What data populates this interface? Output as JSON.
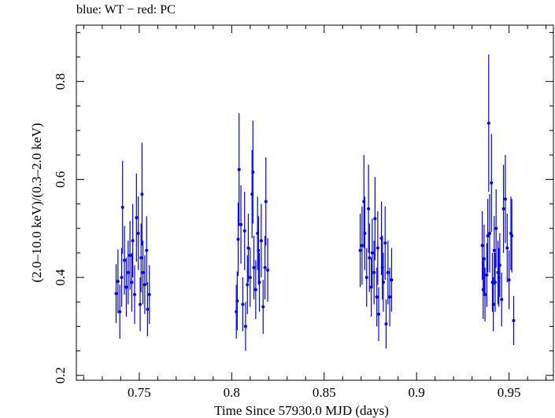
{
  "title": "blue: WT − red: PC",
  "chart_data": {
    "type": "scatter",
    "title": "blue: WT − red: PC",
    "xlabel": "Time Since 57930.0 MJD (days)",
    "ylabel": "(2.0–10.0 keV)/(0.3–2.0 keV)",
    "xlim": [
      0.716,
      0.974
    ],
    "ylim": [
      0.19,
      0.915
    ],
    "x_ticks": [
      0.75,
      0.8,
      0.85,
      0.9,
      0.95
    ],
    "x_tick_labels": [
      "0.75",
      "0.8",
      "0.85",
      "0.9",
      "0.95"
    ],
    "y_ticks": [
      0.2,
      0.4,
      0.6,
      0.8
    ],
    "y_tick_labels": [
      "0.2",
      "0.4",
      "0.6",
      "0.8"
    ],
    "grid": false,
    "series": [
      {
        "name": "WT",
        "color": "#0000ff",
        "points": [
          [
            0.7375,
            0.367,
            0.06
          ],
          [
            0.7385,
            0.392,
            0.065
          ],
          [
            0.7395,
            0.33,
            0.055
          ],
          [
            0.7405,
            0.4,
            0.06
          ],
          [
            0.741,
            0.543,
            0.095
          ],
          [
            0.742,
            0.435,
            0.07
          ],
          [
            0.743,
            0.38,
            0.06
          ],
          [
            0.744,
            0.41,
            0.065
          ],
          [
            0.745,
            0.445,
            0.07
          ],
          [
            0.746,
            0.39,
            0.06
          ],
          [
            0.7465,
            0.475,
            0.075
          ],
          [
            0.7475,
            0.365,
            0.06
          ],
          [
            0.7485,
            0.522,
            0.09
          ],
          [
            0.7495,
            0.49,
            0.075
          ],
          [
            0.7505,
            0.345,
            0.055
          ],
          [
            0.751,
            0.44,
            0.07
          ],
          [
            0.7515,
            0.57,
            0.105
          ],
          [
            0.752,
            0.41,
            0.065
          ],
          [
            0.753,
            0.385,
            0.06
          ],
          [
            0.754,
            0.455,
            0.07
          ],
          [
            0.7545,
            0.335,
            0.055
          ],
          [
            0.7555,
            0.365,
            0.06
          ],
          [
            0.8025,
            0.33,
            0.055
          ],
          [
            0.803,
            0.352,
            0.06
          ],
          [
            0.8035,
            0.478,
            0.075
          ],
          [
            0.804,
            0.62,
            0.115
          ],
          [
            0.805,
            0.508,
            0.08
          ],
          [
            0.806,
            0.345,
            0.055
          ],
          [
            0.807,
            0.495,
            0.08
          ],
          [
            0.8075,
            0.3,
            0.05
          ],
          [
            0.8085,
            0.385,
            0.06
          ],
          [
            0.809,
            0.46,
            0.07
          ],
          [
            0.81,
            0.4,
            0.06
          ],
          [
            0.811,
            0.57,
            0.09
          ],
          [
            0.8115,
            0.615,
            0.105
          ],
          [
            0.812,
            0.42,
            0.065
          ],
          [
            0.813,
            0.375,
            0.06
          ],
          [
            0.814,
            0.49,
            0.075
          ],
          [
            0.8145,
            0.455,
            0.07
          ],
          [
            0.815,
            0.39,
            0.06
          ],
          [
            0.816,
            0.475,
            0.075
          ],
          [
            0.817,
            0.34,
            0.055
          ],
          [
            0.818,
            0.42,
            0.065
          ],
          [
            0.8185,
            0.555,
            0.09
          ],
          [
            0.8195,
            0.415,
            0.065
          ],
          [
            0.8695,
            0.455,
            0.075
          ],
          [
            0.8705,
            0.465,
            0.08
          ],
          [
            0.8715,
            0.555,
            0.095
          ],
          [
            0.872,
            0.49,
            0.075
          ],
          [
            0.873,
            0.4,
            0.06
          ],
          [
            0.874,
            0.54,
            0.09
          ],
          [
            0.8745,
            0.44,
            0.07
          ],
          [
            0.8755,
            0.38,
            0.06
          ],
          [
            0.876,
            0.45,
            0.07
          ],
          [
            0.877,
            0.41,
            0.065
          ],
          [
            0.8775,
            0.52,
            0.085
          ],
          [
            0.8785,
            0.36,
            0.06
          ],
          [
            0.879,
            0.46,
            0.075
          ],
          [
            0.8795,
            0.325,
            0.055
          ],
          [
            0.881,
            0.48,
            0.075
          ],
          [
            0.8815,
            0.42,
            0.065
          ],
          [
            0.882,
            0.39,
            0.06
          ],
          [
            0.883,
            0.47,
            0.075
          ],
          [
            0.8835,
            0.305,
            0.05
          ],
          [
            0.8845,
            0.41,
            0.065
          ],
          [
            0.8855,
            0.36,
            0.06
          ],
          [
            0.8865,
            0.395,
            0.065
          ],
          [
            0.9355,
            0.465,
            0.07
          ],
          [
            0.936,
            0.375,
            0.06
          ],
          [
            0.9365,
            0.438,
            0.07
          ],
          [
            0.937,
            0.365,
            0.055
          ],
          [
            0.938,
            0.405,
            0.065
          ],
          [
            0.9385,
            0.485,
            0.075
          ],
          [
            0.939,
            0.715,
            0.14
          ],
          [
            0.9395,
            0.49,
            0.08
          ],
          [
            0.9405,
            0.593,
            0.1
          ],
          [
            0.941,
            0.39,
            0.06
          ],
          [
            0.9415,
            0.345,
            0.055
          ],
          [
            0.942,
            0.455,
            0.07
          ],
          [
            0.9425,
            0.39,
            0.06
          ],
          [
            0.943,
            0.5,
            0.08
          ],
          [
            0.944,
            0.41,
            0.065
          ],
          [
            0.9445,
            0.4,
            0.06
          ],
          [
            0.945,
            0.425,
            0.065
          ],
          [
            0.946,
            0.355,
            0.055
          ],
          [
            0.947,
            0.54,
            0.09
          ],
          [
            0.948,
            0.56,
            0.09
          ],
          [
            0.949,
            0.46,
            0.07
          ],
          [
            0.95,
            0.395,
            0.06
          ],
          [
            0.951,
            0.49,
            0.075
          ],
          [
            0.9515,
            0.485,
            0.075
          ],
          [
            0.9525,
            0.312,
            0.05
          ]
        ]
      }
    ]
  }
}
